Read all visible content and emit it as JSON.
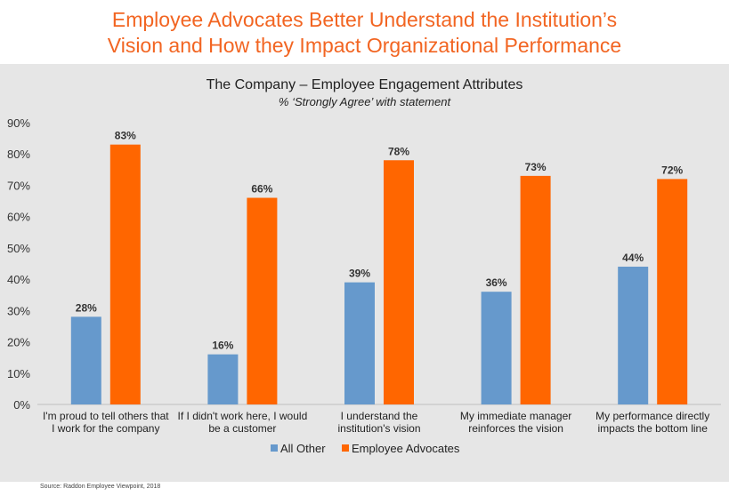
{
  "slide": {
    "title_line1": "Employee Advocates Better Understand the Institution’s",
    "title_line2": "Vision and How they Impact Organizational Performance",
    "source": "Source: Raddon Employee Viewpoint, 2018"
  },
  "colors": {
    "title": "#f26522",
    "all_other": "#6699cc",
    "employee_advocates": "#ff6600",
    "panel_background": "#e6e6e6"
  },
  "chart_data": {
    "type": "bar",
    "title": "The Company – Employee Engagement Attributes",
    "subtitle": "% ‘Strongly Agree’ with statement",
    "categories": [
      [
        "I'm proud to tell others that",
        "I work for the company"
      ],
      [
        "If I didn't work here, I would",
        "be a customer"
      ],
      [
        "I understand the",
        "institution's vision"
      ],
      [
        "My immediate manager",
        "reinforces the vision"
      ],
      [
        "My performance directly",
        "impacts the bottom line"
      ]
    ],
    "series": [
      {
        "name": "All Other",
        "color": "#6699cc",
        "values": [
          28,
          16,
          39,
          36,
          44
        ],
        "labels": [
          "28%",
          "16%",
          "39%",
          "36%",
          "44%"
        ]
      },
      {
        "name": "Employee Advocates",
        "color": "#ff6600",
        "values": [
          83,
          66,
          78,
          73,
          72
        ],
        "labels": [
          "83%",
          "66%",
          "78%",
          "73%",
          "72%"
        ]
      }
    ],
    "ylim": [
      0,
      90
    ],
    "yticks": [
      "0%",
      "10%",
      "20%",
      "30%",
      "40%",
      "50%",
      "60%",
      "70%",
      "80%",
      "90%"
    ],
    "grid": false,
    "legend": "bottom"
  }
}
